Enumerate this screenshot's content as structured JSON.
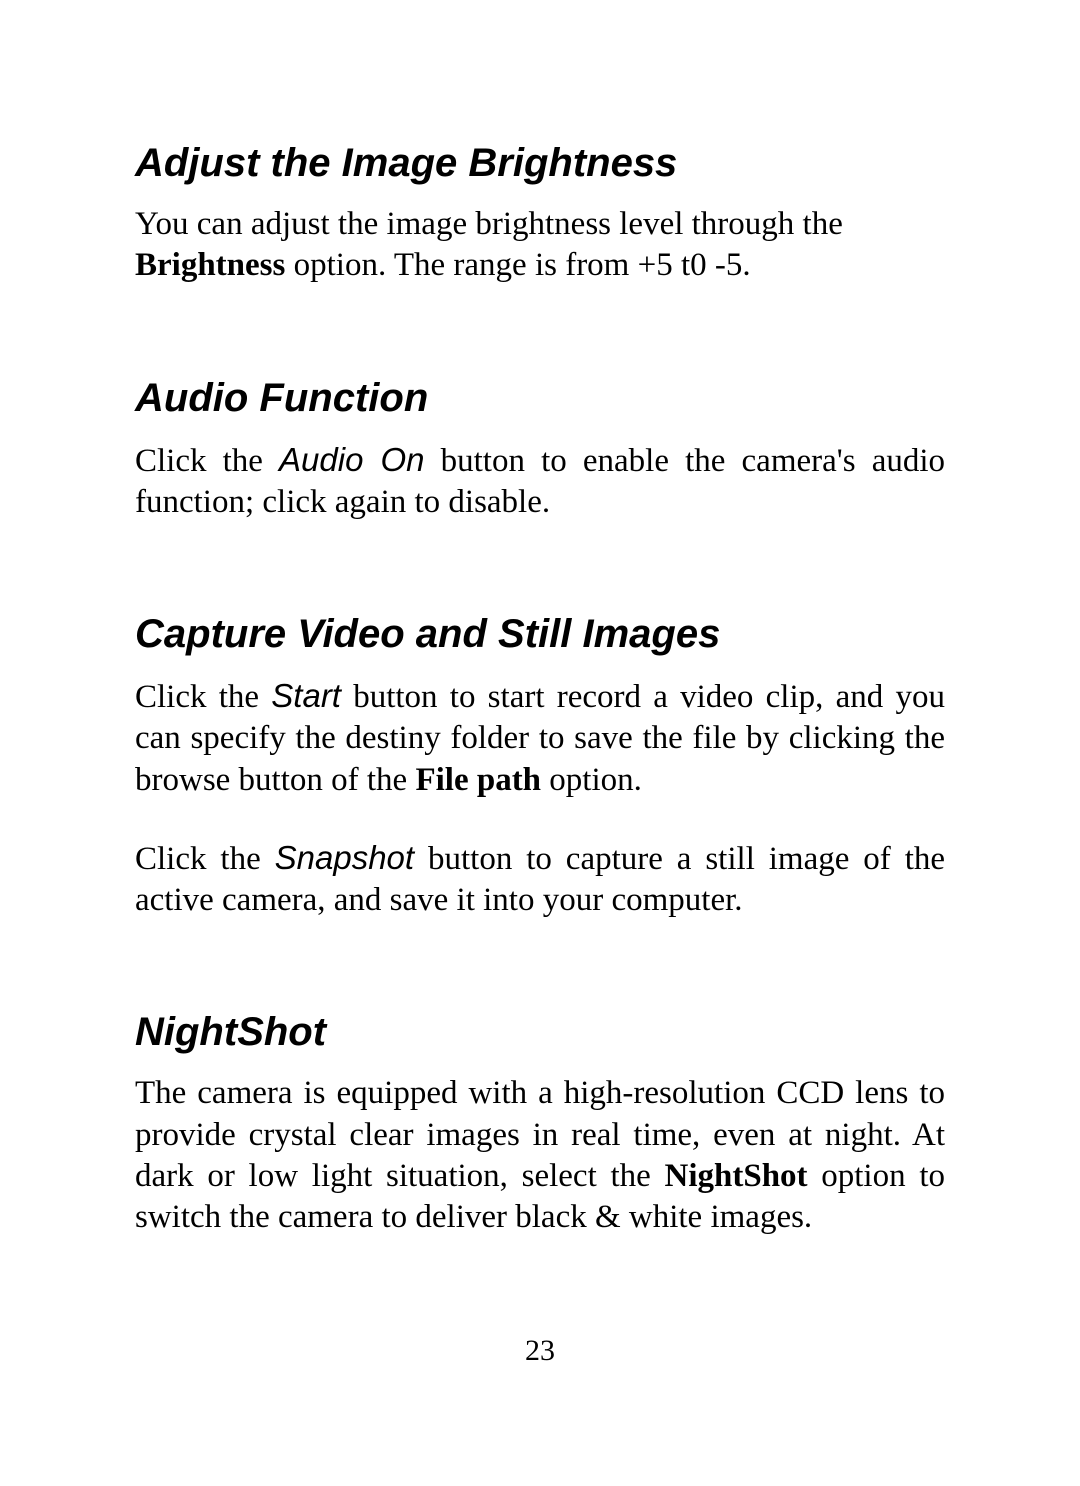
{
  "page": {
    "number": "23",
    "background_color": "#ffffff",
    "text_color": "#000000"
  },
  "typography": {
    "heading": {
      "font_family": "Arial",
      "fontsize_pt": 30,
      "weight": "bold",
      "style": "italic"
    },
    "body": {
      "font_family": "Times New Roman",
      "fontsize_pt": 25,
      "weight": "normal"
    },
    "inline_ui_label": {
      "font_family": "Arial",
      "style": "italic"
    }
  },
  "sections": [
    {
      "heading": "Adjust the Image Brightness",
      "paragraphs": [
        {
          "runs": [
            {
              "t": "You can adjust the image brightness level through the "
            },
            {
              "t": "Brightness",
              "bold": true
            },
            {
              "t": " option.  The range is from +5 t0 -5."
            }
          ],
          "justify": false
        }
      ]
    },
    {
      "heading": "Audio Function",
      "paragraphs": [
        {
          "runs": [
            {
              "t": "Click the "
            },
            {
              "t": "Audio On",
              "italic_sans": true
            },
            {
              "t": " button to enable the camera's audio function; click again to disable."
            }
          ],
          "justify": true
        }
      ]
    },
    {
      "heading": "Capture Video and Still Images",
      "paragraphs": [
        {
          "runs": [
            {
              "t": "Click the "
            },
            {
              "t": "Start",
              "italic_sans": true
            },
            {
              "t": " button to start record a video clip, and you can specify the destiny folder to save the file by clicking the browse button of the "
            },
            {
              "t": "File path",
              "bold": true
            },
            {
              "t": " option."
            }
          ],
          "justify": true
        },
        {
          "runs": [
            {
              "t": "Click the "
            },
            {
              "t": "Snapshot",
              "italic_sans": true
            },
            {
              "t": " button to capture a still image of the active camera, and save it into your computer."
            }
          ],
          "justify": true
        }
      ]
    },
    {
      "heading": "NightShot",
      "paragraphs": [
        {
          "runs": [
            {
              "t": "The camera is equipped with a high-resolution CCD lens to provide crystal clear images in real time, even at night.  At dark or low light situation, select the "
            },
            {
              "t": "NightShot",
              "bold": true
            },
            {
              "t": " option to switch the camera to deliver black & white images."
            }
          ],
          "justify": true
        }
      ]
    }
  ]
}
